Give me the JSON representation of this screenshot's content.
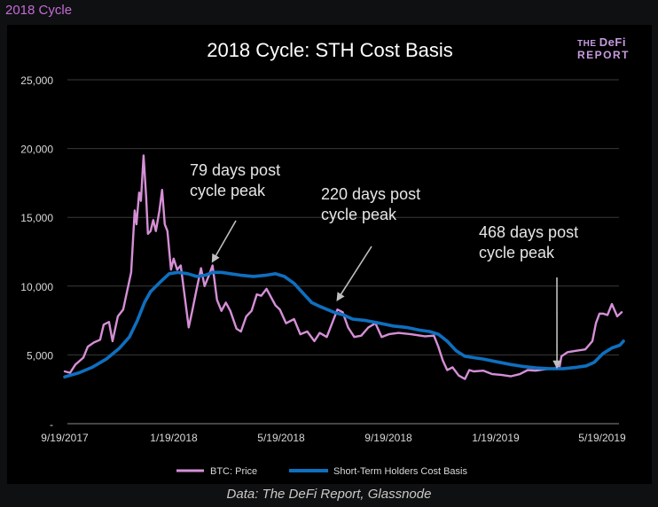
{
  "header": {
    "label": "2018 Cycle"
  },
  "logo": {
    "line1_prefix": "THE",
    "line1_main": "DeFi",
    "line2": "REPORT"
  },
  "caption": "Data: The DeFi Report, Glassnode",
  "chart_data": {
    "type": "line",
    "title": "2018 Cycle: STH Cost Basis",
    "x_ticks": [
      "9/19/2017",
      "1/19/2018",
      "5/19/2018",
      "9/19/2018",
      "1/19/2019",
      "5/19/2019"
    ],
    "y_ticks": [
      "-",
      "5,000",
      "10,000",
      "15,000",
      "20,000",
      "25,000"
    ],
    "ylim": [
      0,
      25000
    ],
    "xlim": [
      "2017-09-19",
      "2019-06-15"
    ],
    "grid": true,
    "legend": "bottom",
    "annotations": [
      {
        "text": "79 days post cycle peak",
        "lines": [
          "79 days post",
          "cycle peak"
        ],
        "date": "2018-03-05",
        "value": 11800
      },
      {
        "text": "220 days post cycle peak",
        "lines": [
          "220 days post",
          "cycle peak"
        ],
        "date": "2018-07-24",
        "value": 9000
      },
      {
        "text": "468 days post cycle peak",
        "lines": [
          "468 days post",
          "cycle peak"
        ],
        "date": "2019-03-29",
        "value": 4100
      }
    ],
    "series": [
      {
        "name": "BTC: Price",
        "color": "#d58fd6",
        "points": [
          [
            "2017-09-19",
            3800
          ],
          [
            "2017-09-25",
            3700
          ],
          [
            "2017-10-01",
            4300
          ],
          [
            "2017-10-10",
            4800
          ],
          [
            "2017-10-15",
            5600
          ],
          [
            "2017-10-22",
            5900
          ],
          [
            "2017-10-29",
            6100
          ],
          [
            "2017-11-02",
            7200
          ],
          [
            "2017-11-08",
            7400
          ],
          [
            "2017-11-12",
            6000
          ],
          [
            "2017-11-18",
            7800
          ],
          [
            "2017-11-24",
            8300
          ],
          [
            "2017-11-29",
            9800
          ],
          [
            "2017-12-03",
            11000
          ],
          [
            "2017-12-07",
            15500
          ],
          [
            "2017-12-09",
            14500
          ],
          [
            "2017-12-12",
            16800
          ],
          [
            "2017-12-14",
            16200
          ],
          [
            "2017-12-17",
            19500
          ],
          [
            "2017-12-20",
            16500
          ],
          [
            "2017-12-22",
            13800
          ],
          [
            "2017-12-25",
            14000
          ],
          [
            "2017-12-28",
            14800
          ],
          [
            "2017-12-31",
            14000
          ],
          [
            "2018-01-04",
            15500
          ],
          [
            "2018-01-07",
            17000
          ],
          [
            "2018-01-10",
            14500
          ],
          [
            "2018-01-13",
            14000
          ],
          [
            "2018-01-17",
            11200
          ],
          [
            "2018-01-20",
            12000
          ],
          [
            "2018-01-24",
            11200
          ],
          [
            "2018-01-28",
            11500
          ],
          [
            "2018-02-01",
            9500
          ],
          [
            "2018-02-06",
            7000
          ],
          [
            "2018-02-10",
            8200
          ],
          [
            "2018-02-15",
            9800
          ],
          [
            "2018-02-20",
            11300
          ],
          [
            "2018-02-24",
            10000
          ],
          [
            "2018-03-01",
            10800
          ],
          [
            "2018-03-05",
            11500
          ],
          [
            "2018-03-10",
            9000
          ],
          [
            "2018-03-15",
            8200
          ],
          [
            "2018-03-20",
            8800
          ],
          [
            "2018-03-25",
            8200
          ],
          [
            "2018-04-01",
            6900
          ],
          [
            "2018-04-06",
            6700
          ],
          [
            "2018-04-12",
            7800
          ],
          [
            "2018-04-18",
            8200
          ],
          [
            "2018-04-24",
            9400
          ],
          [
            "2018-04-29",
            9300
          ],
          [
            "2018-05-05",
            9800
          ],
          [
            "2018-05-10",
            9200
          ],
          [
            "2018-05-15",
            8600
          ],
          [
            "2018-05-20",
            8300
          ],
          [
            "2018-05-27",
            7300
          ],
          [
            "2018-06-05",
            7600
          ],
          [
            "2018-06-12",
            6500
          ],
          [
            "2018-06-20",
            6700
          ],
          [
            "2018-06-28",
            6000
          ],
          [
            "2018-07-04",
            6600
          ],
          [
            "2018-07-12",
            6300
          ],
          [
            "2018-07-18",
            7300
          ],
          [
            "2018-07-24",
            8300
          ],
          [
            "2018-07-30",
            8100
          ],
          [
            "2018-08-05",
            7000
          ],
          [
            "2018-08-12",
            6300
          ],
          [
            "2018-08-20",
            6400
          ],
          [
            "2018-08-28",
            7000
          ],
          [
            "2018-09-05",
            7300
          ],
          [
            "2018-09-12",
            6300
          ],
          [
            "2018-09-20",
            6500
          ],
          [
            "2018-10-01",
            6600
          ],
          [
            "2018-10-15",
            6500
          ],
          [
            "2018-10-31",
            6350
          ],
          [
            "2018-11-10",
            6400
          ],
          [
            "2018-11-15",
            5600
          ],
          [
            "2018-11-20",
            4600
          ],
          [
            "2018-11-25",
            3900
          ],
          [
            "2018-12-01",
            4100
          ],
          [
            "2018-12-08",
            3500
          ],
          [
            "2018-12-15",
            3250
          ],
          [
            "2018-12-20",
            3900
          ],
          [
            "2018-12-25",
            3800
          ],
          [
            "2019-01-05",
            3850
          ],
          [
            "2019-01-15",
            3600
          ],
          [
            "2019-01-25",
            3550
          ],
          [
            "2019-02-05",
            3450
          ],
          [
            "2019-02-15",
            3600
          ],
          [
            "2019-02-24",
            3900
          ],
          [
            "2019-03-05",
            3850
          ],
          [
            "2019-03-15",
            3950
          ],
          [
            "2019-03-25",
            4000
          ],
          [
            "2019-04-01",
            4150
          ],
          [
            "2019-04-03",
            4900
          ],
          [
            "2019-04-10",
            5200
          ],
          [
            "2019-04-20",
            5300
          ],
          [
            "2019-04-30",
            5400
          ],
          [
            "2019-05-08",
            6000
          ],
          [
            "2019-05-12",
            7300
          ],
          [
            "2019-05-16",
            8000
          ],
          [
            "2019-05-20",
            8000
          ],
          [
            "2019-05-25",
            7900
          ],
          [
            "2019-05-30",
            8700
          ],
          [
            "2019-06-05",
            7800
          ],
          [
            "2019-06-10",
            8100
          ]
        ]
      },
      {
        "name": "Short-Term Holders Cost Basis",
        "color": "#0f6fbf",
        "points": [
          [
            "2017-09-19",
            3400
          ],
          [
            "2017-10-05",
            3700
          ],
          [
            "2017-10-20",
            4100
          ],
          [
            "2017-11-05",
            4700
          ],
          [
            "2017-11-20",
            5500
          ],
          [
            "2017-12-01",
            6300
          ],
          [
            "2017-12-10",
            7500
          ],
          [
            "2017-12-18",
            8800
          ],
          [
            "2017-12-25",
            9600
          ],
          [
            "2018-01-05",
            10300
          ],
          [
            "2018-01-15",
            10900
          ],
          [
            "2018-01-25",
            11000
          ],
          [
            "2018-02-05",
            10900
          ],
          [
            "2018-02-15",
            10700
          ],
          [
            "2018-02-25",
            10800
          ],
          [
            "2018-03-05",
            11000
          ],
          [
            "2018-03-15",
            11000
          ],
          [
            "2018-03-25",
            10900
          ],
          [
            "2018-04-05",
            10800
          ],
          [
            "2018-04-20",
            10700
          ],
          [
            "2018-05-05",
            10800
          ],
          [
            "2018-05-15",
            10900
          ],
          [
            "2018-05-25",
            10700
          ],
          [
            "2018-06-05",
            10200
          ],
          [
            "2018-06-15",
            9500
          ],
          [
            "2018-06-25",
            8800
          ],
          [
            "2018-07-05",
            8500
          ],
          [
            "2018-07-20",
            8100
          ],
          [
            "2018-07-31",
            7900
          ],
          [
            "2018-08-10",
            7600
          ],
          [
            "2018-08-25",
            7500
          ],
          [
            "2018-09-10",
            7300
          ],
          [
            "2018-09-25",
            7100
          ],
          [
            "2018-10-10",
            7000
          ],
          [
            "2018-10-25",
            6800
          ],
          [
            "2018-11-05",
            6700
          ],
          [
            "2018-11-15",
            6500
          ],
          [
            "2018-11-25",
            6000
          ],
          [
            "2018-12-05",
            5300
          ],
          [
            "2018-12-15",
            4900
          ],
          [
            "2018-12-25",
            4800
          ],
          [
            "2019-01-05",
            4700
          ],
          [
            "2019-01-20",
            4500
          ],
          [
            "2019-02-05",
            4300
          ],
          [
            "2019-02-20",
            4150
          ],
          [
            "2019-03-05",
            4050
          ],
          [
            "2019-03-20",
            4000
          ],
          [
            "2019-04-05",
            4000
          ],
          [
            "2019-04-20",
            4100
          ],
          [
            "2019-05-01",
            4200
          ],
          [
            "2019-05-10",
            4450
          ],
          [
            "2019-05-20",
            5100
          ],
          [
            "2019-05-30",
            5500
          ],
          [
            "2019-06-08",
            5700
          ],
          [
            "2019-06-12",
            6000
          ]
        ]
      }
    ]
  }
}
